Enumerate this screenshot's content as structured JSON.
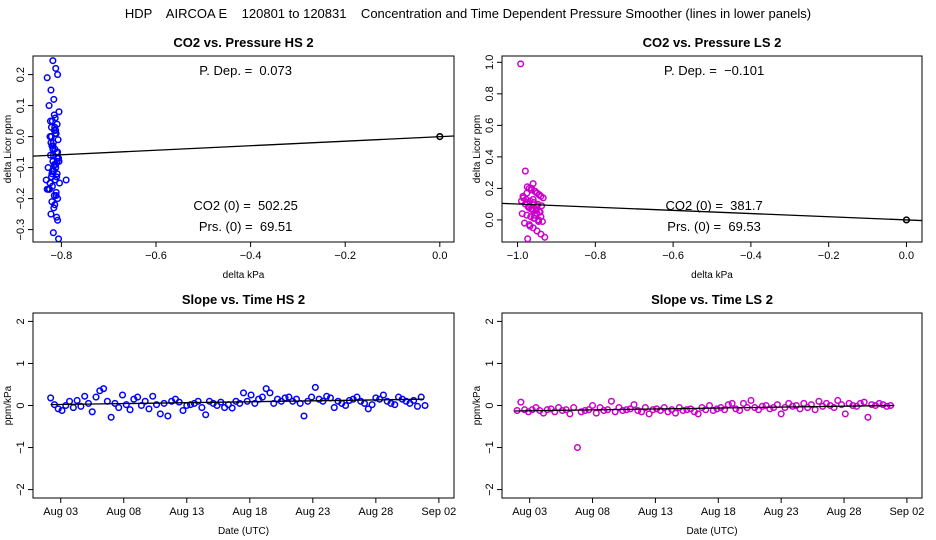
{
  "page_title": "HDP    AIRCOA E    120801 to 120831    Concentration and Time Dependent Pressure Smoother (lines in lower panels)",
  "colors": {
    "hs": "#0000ff",
    "ls": "#cc00cc",
    "line": "#000000"
  },
  "chart_data": [
    {
      "id": "co2-pressure-hs",
      "type": "scatter",
      "title": "CO2 vs. Pressure HS 2",
      "xlabel": "delta kPa",
      "ylabel": "delta Licor ppm",
      "xlim": [
        -0.86,
        0.03
      ],
      "ylim": [
        -0.34,
        0.26
      ],
      "xticks": [
        -0.8,
        -0.6,
        -0.4,
        -0.2,
        0.0
      ],
      "xtick_labels": [
        "−0.8",
        "−0.6",
        "−0.4",
        "−0.2",
        "0.0"
      ],
      "yticks": [
        -0.3,
        -0.2,
        -0.1,
        0.0,
        0.1,
        0.2
      ],
      "ytick_labels": [
        "−0.3",
        "−0.2",
        "−0.1",
        "0.0",
        "0.1",
        "0.2"
      ],
      "annotations": {
        "pdep": "P. Dep. =  0.073",
        "co2": "CO2 (0) =  502.25",
        "prs": "Prs. (0) =  69.51"
      },
      "fit_line": {
        "x": [
          -0.86,
          0.03
        ],
        "y": [
          -0.063,
          0.002
        ]
      },
      "ref_point": {
        "x": 0.0,
        "y": 0.0
      },
      "points": {
        "x": [
          -0.818,
          -0.83,
          -0.812,
          -0.808,
          -0.822,
          -0.816,
          -0.826,
          -0.805,
          -0.813,
          -0.819,
          -0.809,
          -0.821,
          -0.815,
          -0.811,
          -0.824,
          -0.807,
          -0.817,
          -0.82,
          -0.814,
          -0.81,
          -0.823,
          -0.806,
          -0.818,
          -0.812,
          -0.828,
          -0.816,
          -0.809,
          -0.821,
          -0.813,
          -0.804,
          -0.819,
          -0.825,
          -0.811,
          -0.815,
          -0.808,
          -0.82,
          -0.814,
          -0.822,
          -0.81,
          -0.817,
          -0.806,
          -0.823,
          -0.812,
          -0.818,
          -0.809,
          -0.815,
          -0.82,
          -0.813,
          -0.827,
          -0.811,
          -0.816,
          -0.808,
          -0.821,
          -0.814,
          -0.819,
          -0.81,
          -0.817,
          -0.805,
          -0.824,
          -0.812,
          -0.818,
          -0.815,
          -0.822,
          -0.809,
          -0.813,
          -0.808,
          -0.832,
          -0.83,
          -0.79
        ],
        "y": [
          0.245,
          0.19,
          0.22,
          0.2,
          0.15,
          0.12,
          0.1,
          0.08,
          0.06,
          0.05,
          0.04,
          0.03,
          0.02,
          0.01,
          0.0,
          -0.01,
          -0.02,
          -0.03,
          -0.04,
          -0.05,
          -0.06,
          -0.07,
          -0.08,
          -0.09,
          -0.1,
          -0.11,
          -0.12,
          -0.13,
          -0.14,
          -0.15,
          -0.16,
          -0.17,
          -0.18,
          -0.19,
          -0.2,
          -0.21,
          -0.22,
          -0.25,
          -0.26,
          -0.31,
          -0.33,
          0.05,
          0.02,
          -0.03,
          -0.07,
          -0.09,
          -0.12,
          -0.14,
          -0.17,
          -0.19,
          -0.23,
          -0.05,
          0.0,
          0.03,
          -0.11,
          -0.13,
          -0.06,
          -0.08,
          -0.15,
          -0.1,
          -0.04,
          0.07,
          -0.02,
          -0.08,
          0.01,
          -0.27,
          -0.14,
          -0.17,
          -0.14
        ]
      }
    },
    {
      "id": "co2-pressure-ls",
      "type": "scatter",
      "title": "CO2 vs. Pressure LS 2",
      "xlabel": "delta kPa",
      "ylabel": "delta Licor ppm",
      "xlim": [
        -1.04,
        0.04
      ],
      "ylim": [
        -0.14,
        1.04
      ],
      "xticks": [
        -1.0,
        -0.8,
        -0.6,
        -0.4,
        -0.2,
        0.0
      ],
      "xtick_labels": [
        "−1.0",
        "−0.8",
        "−0.6",
        "−0.4",
        "−0.2",
        "0.0"
      ],
      "yticks": [
        0.0,
        0.2,
        0.4,
        0.6,
        0.8,
        1.0
      ],
      "ytick_labels": [
        "0.0",
        "0.2",
        "0.4",
        "0.6",
        "0.8",
        "1.0"
      ],
      "annotations": {
        "pdep": "P. Dep. =  −0.101",
        "co2": "CO2 (0) =  381.7",
        "prs": "Prs. (0) =  69.53"
      },
      "fit_line": {
        "x": [
          -1.04,
          0.04
        ],
        "y": [
          0.105,
          -0.004
        ]
      },
      "ref_point": {
        "x": 0.0,
        "y": 0.0
      },
      "points": {
        "x": [
          -0.992,
          -0.98,
          -0.975,
          -0.97,
          -0.965,
          -0.96,
          -0.955,
          -0.95,
          -0.945,
          -0.94,
          -0.985,
          -0.978,
          -0.968,
          -0.958,
          -0.948,
          -0.938,
          -0.972,
          -0.962,
          -0.952,
          -0.942,
          -0.988,
          -0.976,
          -0.966,
          -0.956,
          -0.946,
          -0.936,
          -0.982,
          -0.97,
          -0.96,
          -0.95,
          -0.94,
          -0.93,
          -0.974,
          -0.964,
          -0.954,
          -0.944,
          -0.934,
          -0.99,
          -0.98,
          -0.97,
          -0.96,
          -0.95,
          -0.94,
          -0.986,
          -0.976,
          -0.966,
          -0.956,
          -0.946,
          -0.976,
          -0.96,
          -0.95,
          -0.944,
          -0.958,
          -0.968
        ],
        "y": [
          0.99,
          0.31,
          0.21,
          0.2,
          0.19,
          0.23,
          0.18,
          0.17,
          0.16,
          0.15,
          0.14,
          0.13,
          0.12,
          0.11,
          0.1,
          0.09,
          0.08,
          0.07,
          0.06,
          0.05,
          0.04,
          0.03,
          0.02,
          0.01,
          0.0,
          -0.01,
          -0.02,
          -0.03,
          -0.05,
          -0.07,
          -0.09,
          -0.11,
          -0.12,
          0.2,
          0.18,
          0.16,
          0.14,
          0.12,
          0.1,
          0.08,
          0.06,
          0.04,
          0.02,
          0.15,
          0.11,
          0.07,
          0.03,
          -0.01,
          0.17,
          0.13,
          0.09,
          0.05,
          0.01,
          -0.04
        ]
      }
    },
    {
      "id": "slope-time-hs",
      "type": "scatter",
      "title": "Slope vs. Time HS 2",
      "xlabel": "Date (UTC)",
      "ylabel": "ppm/kPa",
      "xlim": [
        0.8,
        34.2
      ],
      "ylim": [
        -2.2,
        2.2
      ],
      "xticks": [
        3,
        8,
        13,
        18,
        23,
        28,
        33
      ],
      "xtick_labels": [
        "Aug 03",
        "Aug 08",
        "Aug 13",
        "Aug 18",
        "Aug 23",
        "Aug 28",
        "Sep 02"
      ],
      "yticks": [
        -2,
        -1,
        0,
        1,
        2
      ],
      "ytick_labels": [
        "−2",
        "−1",
        "0",
        "1",
        "2"
      ],
      "fit_line": {
        "x": [
          2.2,
          31.8
        ],
        "y": [
          0.02,
          0.15
        ]
      },
      "points": {
        "x": [
          2.2,
          2.5,
          2.8,
          3.1,
          3.4,
          3.7,
          4.0,
          4.3,
          4.6,
          4.9,
          5.2,
          5.5,
          5.8,
          6.1,
          6.4,
          6.7,
          7.0,
          7.3,
          7.6,
          7.9,
          8.2,
          8.5,
          8.8,
          9.1,
          9.4,
          9.7,
          10.0,
          10.3,
          10.6,
          10.9,
          11.2,
          11.5,
          11.8,
          12.1,
          12.4,
          12.7,
          13.0,
          13.3,
          13.6,
          13.9,
          14.2,
          14.5,
          14.8,
          15.1,
          15.4,
          15.7,
          16.0,
          16.3,
          16.6,
          16.9,
          17.2,
          17.5,
          17.8,
          18.1,
          18.4,
          18.7,
          19.0,
          19.3,
          19.6,
          19.9,
          20.2,
          20.5,
          20.8,
          21.1,
          21.4,
          21.7,
          22.0,
          22.3,
          22.6,
          22.9,
          23.2,
          23.5,
          23.8,
          24.1,
          24.4,
          24.7,
          25.0,
          25.3,
          25.6,
          25.9,
          26.2,
          26.5,
          26.8,
          27.1,
          27.4,
          27.7,
          28.0,
          28.3,
          28.6,
          28.9,
          29.2,
          29.5,
          29.8,
          30.1,
          30.4,
          30.7,
          31.0,
          31.3,
          31.6,
          31.9
        ],
        "y": [
          0.18,
          0.02,
          -0.08,
          -0.12,
          0.0,
          0.1,
          -0.05,
          0.12,
          -0.02,
          0.22,
          0.05,
          -0.15,
          0.2,
          0.35,
          0.4,
          0.1,
          -0.28,
          0.05,
          -0.05,
          0.25,
          0.02,
          -0.1,
          0.15,
          0.2,
          0.0,
          0.1,
          -0.08,
          0.22,
          0.02,
          -0.2,
          0.05,
          -0.25,
          0.1,
          0.15,
          0.08,
          -0.12,
          0.0,
          0.02,
          0.05,
          0.1,
          -0.05,
          -0.22,
          0.1,
          0.05,
          0.0,
          0.08,
          -0.05,
          0.02,
          -0.06,
          0.1,
          0.05,
          0.3,
          0.1,
          0.25,
          0.05,
          0.15,
          0.2,
          0.4,
          0.3,
          0.05,
          0.15,
          0.1,
          0.18,
          0.2,
          0.1,
          0.15,
          0.05,
          -0.25,
          0.1,
          0.2,
          0.43,
          0.15,
          0.1,
          0.22,
          0.18,
          -0.05,
          0.1,
          0.05,
          0.0,
          0.12,
          0.15,
          0.2,
          0.1,
          0.05,
          -0.08,
          0.02,
          0.18,
          0.15,
          0.25,
          0.1,
          0.05,
          0.02,
          0.2,
          0.15,
          0.1,
          0.05,
          0.12,
          -0.02,
          0.2,
          0.0
        ]
      }
    },
    {
      "id": "slope-time-ls",
      "type": "scatter",
      "title": "Slope vs. Time LS 2",
      "xlabel": "Date (UTC)",
      "ylabel": "ppm/kPa",
      "xlim": [
        0.8,
        34.2
      ],
      "ylim": [
        -2.2,
        2.2
      ],
      "xticks": [
        3,
        8,
        13,
        18,
        23,
        28,
        33
      ],
      "xtick_labels": [
        "Aug 03",
        "Aug 08",
        "Aug 13",
        "Aug 18",
        "Aug 23",
        "Aug 28",
        "Sep 02"
      ],
      "yticks": [
        -2,
        -1,
        0,
        1,
        2
      ],
      "ytick_labels": [
        "−2",
        "−1",
        "0",
        "1",
        "2"
      ],
      "fit_line": {
        "x": [
          1.8,
          32.0
        ],
        "y": [
          -0.13,
          0.0
        ]
      },
      "points": {
        "x": [
          2.0,
          2.3,
          2.6,
          2.9,
          3.2,
          3.5,
          3.8,
          4.1,
          4.4,
          4.7,
          5.0,
          5.3,
          5.6,
          5.9,
          6.2,
          6.5,
          6.8,
          7.1,
          7.4,
          7.7,
          8.0,
          8.3,
          8.6,
          8.9,
          9.2,
          9.5,
          9.8,
          10.1,
          10.4,
          10.7,
          11.0,
          11.3,
          11.6,
          11.9,
          12.2,
          12.5,
          12.8,
          13.1,
          13.4,
          13.7,
          14.0,
          14.3,
          14.6,
          14.9,
          15.2,
          15.5,
          15.8,
          16.1,
          16.4,
          16.7,
          17.0,
          17.3,
          17.6,
          17.9,
          18.2,
          18.5,
          18.8,
          19.1,
          19.4,
          19.7,
          20.0,
          20.3,
          20.6,
          20.9,
          21.2,
          21.5,
          21.8,
          22.1,
          22.4,
          22.7,
          23.0,
          23.3,
          23.6,
          23.9,
          24.2,
          24.5,
          24.8,
          25.1,
          25.4,
          25.7,
          26.0,
          26.3,
          26.6,
          26.9,
          27.2,
          27.5,
          27.8,
          28.1,
          28.4,
          28.7,
          29.0,
          29.3,
          29.6,
          29.9,
          30.2,
          30.5,
          30.8,
          31.1,
          31.4,
          31.7
        ],
        "y": [
          -0.12,
          0.08,
          -0.1,
          -0.15,
          -0.1,
          -0.05,
          -0.12,
          -0.18,
          -0.1,
          -0.08,
          -0.15,
          -0.05,
          -0.12,
          -0.1,
          -0.2,
          -0.05,
          -1.0,
          -0.15,
          -0.12,
          -0.1,
          0.0,
          -0.18,
          -0.05,
          -0.12,
          -0.1,
          0.1,
          -0.15,
          -0.05,
          -0.12,
          -0.1,
          -0.08,
          0.02,
          -0.12,
          -0.15,
          -0.05,
          -0.2,
          -0.1,
          -0.08,
          -0.12,
          -0.05,
          -0.15,
          -0.1,
          -0.18,
          -0.05,
          -0.12,
          -0.1,
          -0.08,
          -0.15,
          -0.2,
          -0.05,
          -0.1,
          0.0,
          -0.12,
          -0.08,
          -0.05,
          -0.1,
          0.02,
          0.05,
          -0.08,
          -0.12,
          0.05,
          -0.05,
          0.12,
          -0.05,
          -0.1,
          -0.02,
          0.0,
          -0.08,
          -0.05,
          0.02,
          -0.2,
          -0.05,
          0.05,
          -0.02,
          0.0,
          -0.08,
          0.05,
          -0.05,
          0.02,
          -0.1,
          0.1,
          -0.02,
          0.05,
          0.0,
          -0.05,
          0.12,
          0.02,
          -0.2,
          0.05,
          0.0,
          -0.02,
          0.05,
          0.08,
          -0.28,
          0.02,
          0.0,
          0.05,
          0.02,
          -0.02,
          0.0
        ]
      }
    }
  ]
}
